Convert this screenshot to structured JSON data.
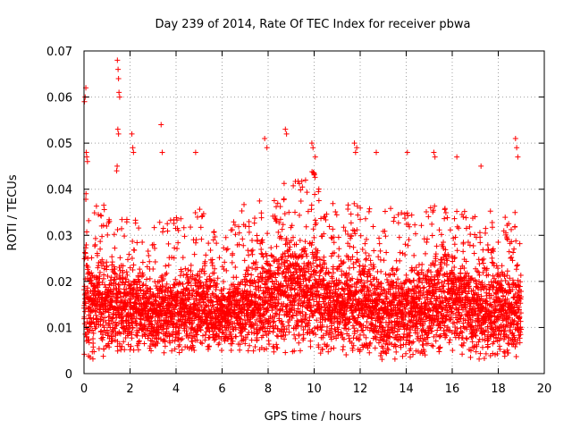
{
  "chart_data": {
    "type": "scatter",
    "title": "Day 239 of 2014, Rate Of TEC Index for receiver pbwa",
    "xlabel": "GPS time / hours",
    "ylabel": "ROTI / TECUs",
    "xlim": [
      0,
      20
    ],
    "ylim": [
      0,
      0.07
    ],
    "grid": true,
    "marker": "plus",
    "color": "#ff0000",
    "x_ticks": [
      "0",
      "2",
      "4",
      "6",
      "8",
      "10",
      "12",
      "14",
      "16",
      "18",
      "20"
    ],
    "y_ticks": [
      "0",
      "0.01",
      "0.02",
      "0.03",
      "0.04",
      "0.05",
      "0.06",
      "0.07"
    ],
    "data_x_range": [
      0,
      19.0
    ],
    "series": [
      {
        "name": "ROTI",
        "x": [
          0.02,
          0.05,
          0.08,
          0.1,
          0.12,
          0.15,
          1.45,
          1.48,
          1.5,
          1.52,
          1.55,
          1.47,
          1.5,
          1.42,
          1.44,
          2.08,
          2.12,
          2.15,
          3.35,
          3.4,
          4.85,
          7.85,
          7.95,
          8.75,
          8.8,
          9.9,
          9.95,
          10.05,
          11.75,
          11.8,
          11.85,
          12.7,
          14.05,
          15.2,
          15.25,
          16.2,
          17.25,
          18.75,
          18.8,
          18.85
        ],
        "y": [
          0.059,
          0.06,
          0.062,
          0.048,
          0.047,
          0.046,
          0.068,
          0.066,
          0.064,
          0.061,
          0.06,
          0.053,
          0.052,
          0.044,
          0.045,
          0.052,
          0.049,
          0.048,
          0.054,
          0.048,
          0.048,
          0.051,
          0.049,
          0.053,
          0.052,
          0.05,
          0.049,
          0.047,
          0.05,
          0.048,
          0.049,
          0.048,
          0.048,
          0.048,
          0.047,
          0.047,
          0.045,
          0.051,
          0.049,
          0.047
        ]
      }
    ],
    "bulk_envelope": {
      "x_hours": [
        0,
        1,
        2,
        3,
        4,
        5,
        6,
        7,
        8,
        9,
        10,
        11,
        12,
        13,
        14,
        15,
        16,
        17,
        18,
        19
      ],
      "upper_roti": [
        0.04,
        0.036,
        0.034,
        0.033,
        0.034,
        0.036,
        0.031,
        0.037,
        0.04,
        0.042,
        0.044,
        0.037,
        0.039,
        0.037,
        0.035,
        0.036,
        0.039,
        0.034,
        0.038,
        0.034
      ],
      "lower_roti": [
        0.003,
        0.004,
        0.004,
        0.005,
        0.005,
        0.005,
        0.005,
        0.005,
        0.005,
        0.005,
        0.005,
        0.004,
        0.004,
        0.003,
        0.004,
        0.004,
        0.005,
        0.003,
        0.004,
        0.004
      ],
      "center_roti": [
        0.015,
        0.014,
        0.014,
        0.013,
        0.013,
        0.014,
        0.012,
        0.014,
        0.016,
        0.017,
        0.017,
        0.014,
        0.015,
        0.013,
        0.013,
        0.014,
        0.016,
        0.013,
        0.014,
        0.012
      ]
    }
  }
}
